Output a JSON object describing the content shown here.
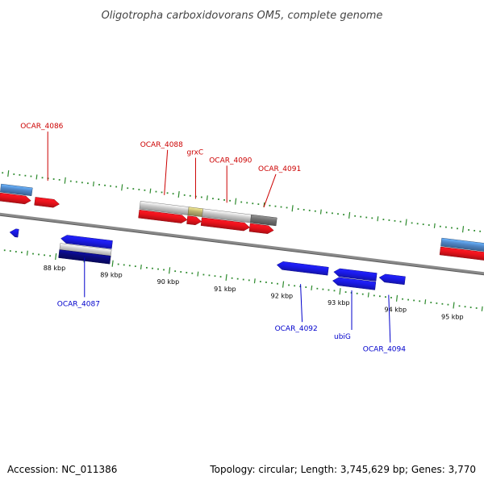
{
  "title": "Oligotropha carboxidovorans OM5, complete genome",
  "footer": {
    "accession": "Accession: NC_011386",
    "summary": "Topology: circular; Length: 3,745,629 bp; Genes: 3,770"
  },
  "colors": {
    "backbone": "#8a8a8a",
    "tick": "#2e8b2e",
    "cds_forward": "#e8121b",
    "cds_reverse": "#1a1ae6",
    "gene_forward": "#4f86c6",
    "gene_reverse": "#0a0a7a",
    "label_forward": "#cc0000",
    "label_reverse": "#0000cc",
    "pseudo_light": "#c8c8c8",
    "pseudo_dark": "#707070",
    "rna": "#b8b070"
  },
  "ticks": [
    {
      "label": "88 kbp",
      "kbp": 88
    },
    {
      "label": "89 kbp",
      "kbp": 89
    },
    {
      "label": "90 kbp",
      "kbp": 90
    },
    {
      "label": "91 kbp",
      "kbp": 91
    },
    {
      "label": "92 kbp",
      "kbp": 92
    },
    {
      "label": "93 kbp",
      "kbp": 93
    },
    {
      "label": "94 kbp",
      "kbp": 94
    },
    {
      "label": "95 kbp",
      "kbp": 95
    }
  ],
  "features": [
    {
      "start": 86.9,
      "end": 87.45,
      "strand": "+",
      "row": 2,
      "kind": "gene_forward"
    },
    {
      "start": 86.9,
      "end": 87.45,
      "strand": "+",
      "row": 1,
      "kind": "cds_forward"
    },
    {
      "start": 87.52,
      "end": 87.95,
      "strand": "+",
      "row": 1,
      "kind": "cds_forward"
    },
    {
      "start": 87.15,
      "end": 87.3,
      "strand": "-",
      "row": 1,
      "kind": "cds_reverse"
    },
    {
      "start": 88.05,
      "end": 88.95,
      "strand": "-",
      "row": 1,
      "kind": "cds_reverse"
    },
    {
      "start": 88.05,
      "end": 88.95,
      "strand": "-",
      "row": 2,
      "kind": "pseudo_light"
    },
    {
      "start": 88.05,
      "end": 88.95,
      "strand": "-",
      "row": 3,
      "kind": "gene_reverse"
    },
    {
      "start": 89.35,
      "end": 90.2,
      "strand": "+",
      "row": 2,
      "kind": "pseudo_light"
    },
    {
      "start": 89.35,
      "end": 90.2,
      "strand": "+",
      "row": 1,
      "kind": "cds_forward"
    },
    {
      "start": 90.2,
      "end": 90.45,
      "strand": "+",
      "row": 2,
      "kind": "rna"
    },
    {
      "start": 90.2,
      "end": 90.45,
      "strand": "+",
      "row": 1,
      "kind": "cds_forward"
    },
    {
      "start": 90.45,
      "end": 91.3,
      "strand": "+",
      "row": 2,
      "kind": "pseudo_light"
    },
    {
      "start": 90.45,
      "end": 91.3,
      "strand": "+",
      "row": 1,
      "kind": "cds_forward"
    },
    {
      "start": 91.3,
      "end": 91.75,
      "strand": "+",
      "row": 2,
      "kind": "pseudo_dark"
    },
    {
      "start": 91.3,
      "end": 91.72,
      "strand": "+",
      "row": 1,
      "kind": "cds_forward"
    },
    {
      "start": 91.85,
      "end": 92.75,
      "strand": "-",
      "row": 1,
      "kind": "cds_reverse"
    },
    {
      "start": 92.85,
      "end": 93.6,
      "strand": "-",
      "row": 1,
      "kind": "cds_reverse"
    },
    {
      "start": 92.85,
      "end": 93.6,
      "strand": "-",
      "row": 2,
      "kind": "cds_reverse"
    },
    {
      "start": 93.65,
      "end": 94.1,
      "strand": "-",
      "row": 1,
      "kind": "cds_reverse"
    },
    {
      "start": 94.65,
      "end": 95.9,
      "strand": "+",
      "row": 2,
      "kind": "gene_forward"
    },
    {
      "start": 94.65,
      "end": 95.9,
      "strand": "+",
      "row": 1,
      "kind": "cds_forward"
    }
  ],
  "labels": [
    {
      "text": "OCAR_4086",
      "strand": "+",
      "kbp": 87.7,
      "dx": -34,
      "dy": -65,
      "anchor": "start",
      "name": "ocar-4086"
    },
    {
      "text": "OCAR_4087",
      "strand": "-",
      "kbp": 88.5,
      "dx": -34,
      "dy": 60,
      "anchor": "start",
      "name": "ocar-4087"
    },
    {
      "text": "OCAR_4088",
      "strand": "+",
      "kbp": 89.75,
      "dx": -30,
      "dy": -60,
      "anchor": "start",
      "name": "ocar-4088"
    },
    {
      "text": "grxC",
      "strand": "+",
      "kbp": 90.3,
      "dx": -11,
      "dy": -55,
      "anchor": "start",
      "name": "grxc"
    },
    {
      "text": "OCAR_4090",
      "strand": "+",
      "kbp": 90.85,
      "dx": -22,
      "dy": -50,
      "anchor": "start",
      "name": "ocar-4090"
    },
    {
      "text": "OCAR_4091",
      "strand": "+",
      "kbp": 91.5,
      "dx": -7,
      "dy": -45,
      "anchor": "start",
      "name": "ocar-4091"
    },
    {
      "text": "OCAR_4092",
      "strand": "-",
      "kbp": 92.3,
      "dx": -32,
      "dy": 58,
      "anchor": "start",
      "name": "ocar-4092"
    },
    {
      "text": "ubiG",
      "strand": "-",
      "kbp": 93.2,
      "dx": -22,
      "dy": 60,
      "anchor": "start",
      "name": "ubig"
    },
    {
      "text": "OCAR_4094",
      "strand": "-",
      "kbp": 93.85,
      "dx": -32,
      "dy": 70,
      "anchor": "start",
      "name": "ocar-4094"
    }
  ]
}
